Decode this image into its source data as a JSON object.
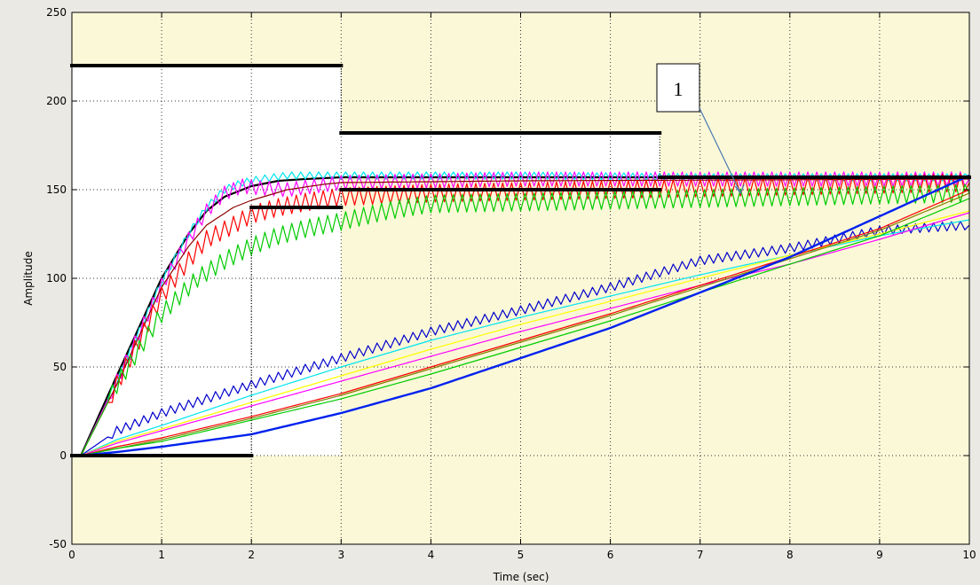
{
  "chart_data": {
    "type": "line",
    "title": "",
    "xlabel": "Time (sec)",
    "ylabel": "Amplitude",
    "xlim": [
      0,
      10
    ],
    "ylim": [
      -50,
      250
    ],
    "xticks": [
      0,
      1,
      2,
      3,
      4,
      5,
      6,
      7,
      8,
      9,
      10
    ],
    "yticks": [
      -50,
      0,
      50,
      100,
      150,
      200,
      250
    ],
    "grid": true,
    "colors": {
      "plot_background": "#fbf8d8",
      "white_region": "#ffffff",
      "figure_background": "#ebe9e4",
      "grid": "#333333"
    },
    "white_regions": [
      {
        "x": [
          0,
          3
        ],
        "y": [
          0,
          220
        ]
      },
      {
        "x": [
          3,
          6.55
        ],
        "y": [
          157,
          182
        ]
      }
    ],
    "bound_segments": [
      {
        "name": "upper bound 0-3",
        "x": [
          0,
          3
        ],
        "y": [
          220,
          220
        ]
      },
      {
        "name": "upper bound 3-6.55",
        "x": [
          3,
          6.55
        ],
        "y": [
          182,
          182
        ]
      },
      {
        "name": "upper bound 6.55-10",
        "x": [
          6.55,
          10
        ],
        "y": [
          157,
          157
        ]
      },
      {
        "name": "lower bound 0-2",
        "x": [
          0,
          2
        ],
        "y": [
          0,
          0
        ]
      },
      {
        "name": "lower bound 2-3",
        "x": [
          2,
          3
        ],
        "y": [
          140,
          140
        ]
      },
      {
        "name": "lower bound 3-6.55",
        "x": [
          3,
          6.55
        ],
        "y": [
          150,
          150
        ]
      }
    ],
    "series": [
      {
        "color": "#000000",
        "width": 2.2,
        "x": [
          0.1,
          0.5,
          1.0,
          1.3,
          1.5,
          1.7,
          2.0,
          2.3,
          2.6,
          3.0,
          4.0,
          6.0,
          8.0,
          10.0
        ],
        "y": [
          0,
          45,
          100,
          125,
          138,
          146,
          152,
          155,
          156,
          157,
          157,
          157,
          157,
          157
        ]
      },
      {
        "color": "#00e5ee",
        "width": 1.2,
        "amp": 2,
        "x": [
          0.1,
          0.5,
          1.0,
          1.3,
          1.5,
          1.7,
          1.9,
          2.1,
          2.4,
          2.7,
          3.0,
          5.0,
          7.0,
          10.0
        ],
        "y": [
          0,
          42,
          98,
          125,
          140,
          150,
          154,
          156,
          158,
          158,
          158,
          158,
          157,
          157
        ]
      },
      {
        "color": "#ff00ff",
        "width": 1.2,
        "amp": 4,
        "x": [
          0.1,
          0.5,
          1.0,
          1.3,
          1.5,
          1.7,
          1.9,
          2.1,
          2.4,
          2.7,
          3.0,
          5.0,
          7.0,
          10.0
        ],
        "y": [
          0,
          42,
          96,
          122,
          138,
          148,
          152,
          151,
          150,
          152,
          154,
          156,
          156,
          156
        ]
      },
      {
        "color": "#8b0000",
        "width": 1.2,
        "x": [
          0.1,
          0.5,
          1.0,
          1.3,
          1.5,
          1.8,
          2.0,
          2.4,
          2.8,
          3.0,
          5.0,
          10.0
        ],
        "y": [
          0,
          40,
          95,
          118,
          130,
          140,
          144,
          150,
          153,
          154,
          155,
          156
        ]
      },
      {
        "color": "#ff0000",
        "width": 1.2,
        "amp": 5,
        "x": [
          0.1,
          0.5,
          1.0,
          1.3,
          1.5,
          1.8,
          2.0,
          2.3,
          2.6,
          3.0,
          4.0,
          6.0,
          8.0,
          10.0
        ],
        "y": [
          0,
          40,
          90,
          110,
          122,
          130,
          136,
          140,
          143,
          146,
          148,
          150,
          152,
          154
        ]
      },
      {
        "color": "#00cc00",
        "width": 1.2,
        "amp": 5,
        "x": [
          0.1,
          0.5,
          1.0,
          1.4,
          1.7,
          2.0,
          2.3,
          2.6,
          3.0,
          3.5,
          4.0,
          6.0,
          8.0,
          10.0
        ],
        "y": [
          0,
          40,
          80,
          100,
          110,
          118,
          124,
          128,
          132,
          138,
          142,
          144,
          146,
          148
        ]
      },
      {
        "color": "#0000cc",
        "width": 1.2,
        "amp": 2.5,
        "x": [
          0.1,
          0.5,
          1.0,
          2.0,
          3.0,
          4.0,
          5.0,
          6.0,
          7.0,
          8.0,
          9.0,
          10.0
        ],
        "y": [
          0,
          14,
          24,
          40,
          55,
          70,
          82,
          95,
          110,
          117,
          127,
          130
        ]
      },
      {
        "color": "#00e5ee",
        "width": 1.2,
        "x": [
          0.1,
          0.5,
          1.0,
          2.0,
          3.0,
          4.0,
          5.0,
          6.0,
          7.0,
          8.0,
          9.0,
          10.0
        ],
        "y": [
          0,
          9,
          17,
          34,
          50,
          65,
          78,
          90,
          102,
          113,
          124,
          133
        ]
      },
      {
        "color": "#ffff00",
        "width": 1.2,
        "x": [
          0.1,
          0.5,
          1.0,
          2.0,
          3.0,
          4.0,
          5.0,
          6.0,
          7.0,
          8.0,
          9.0,
          10.0
        ],
        "y": [
          0,
          8,
          15,
          30,
          45,
          60,
          74,
          87,
          100,
          113,
          125,
          138
        ]
      },
      {
        "color": "#ff00ff",
        "width": 1.2,
        "x": [
          0.1,
          0.5,
          1.0,
          2.0,
          3.0,
          4.0,
          5.0,
          6.0,
          7.0,
          8.0,
          9.0,
          10.0
        ],
        "y": [
          0,
          7,
          14,
          28,
          42,
          56,
          70,
          83,
          96,
          108,
          122,
          137
        ]
      },
      {
        "color": "#ff0000",
        "width": 1.2,
        "x": [
          0.1,
          0.5,
          1.0,
          2.0,
          3.0,
          4.0,
          5.0,
          6.0,
          7.0,
          8.0,
          9.0,
          10.0
        ],
        "y": [
          0,
          5,
          10,
          22,
          35,
          50,
          65,
          80,
          96,
          112,
          128,
          150
        ]
      },
      {
        "color": "#808000",
        "width": 1.2,
        "x": [
          0.1,
          0.5,
          1.0,
          2.0,
          3.0,
          4.0,
          5.0,
          6.0,
          7.0,
          8.0,
          9.0,
          10.0
        ],
        "y": [
          0,
          4,
          9,
          21,
          34,
          49,
          64,
          79,
          95,
          111,
          127,
          148
        ]
      },
      {
        "color": "#00cc00",
        "width": 1.2,
        "x": [
          0.1,
          0.5,
          1.0,
          2.0,
          3.0,
          4.0,
          5.0,
          6.0,
          7.0,
          8.0,
          9.0,
          10.0
        ],
        "y": [
          0,
          4,
          8,
          20,
          32,
          46,
          61,
          76,
          92,
          108,
          124,
          145
        ]
      },
      {
        "color": "#0022ee",
        "width": 2.4,
        "x": [
          0.1,
          0.5,
          1.0,
          2.0,
          3.0,
          4.0,
          5.0,
          6.0,
          7.0,
          8.0,
          9.0,
          10.0
        ],
        "y": [
          0,
          2,
          5,
          12,
          24,
          38,
          55,
          72,
          92,
          112,
          135,
          158
        ]
      }
    ],
    "annotations": [
      {
        "text": "1",
        "anchor": [
          7.45,
          148
        ]
      }
    ]
  }
}
